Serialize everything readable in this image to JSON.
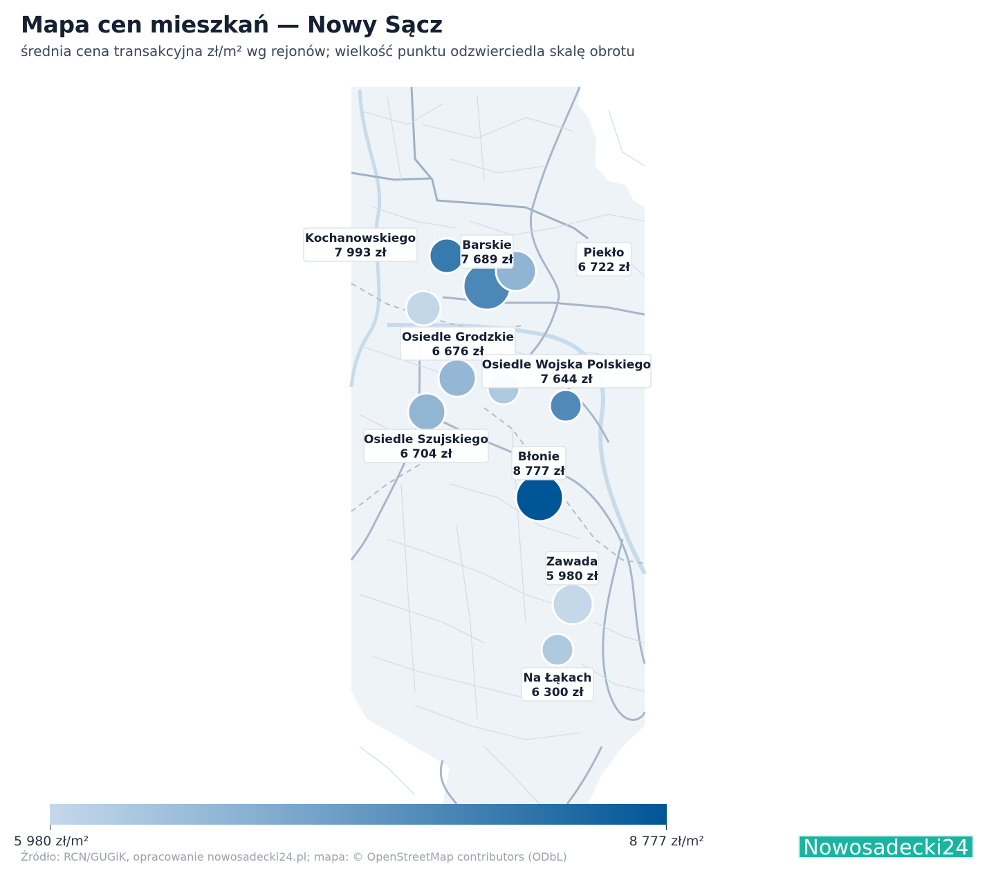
{
  "header": {
    "title": "Mapa cen mieszkań — Nowy Sącz",
    "subtitle": "średnia cena transakcyjna zł/m² wg rejonów; wielkość punktu odzwierciedla skalę obrotu"
  },
  "colors": {
    "low": "#c4d8ea",
    "high": "#005596",
    "map_bg": "#eef3f7",
    "brand": "#19b5a0"
  },
  "chart_data": {
    "type": "bubble-map",
    "value_min": 5980,
    "value_max": 8777,
    "districts": [
      {
        "name": "Kochanowskiego",
        "value_label": "7 993 zł",
        "value": 7993
      },
      {
        "name": "Barskie",
        "value_label": "7 689 zł",
        "value": 7689
      },
      {
        "name": "Piekło",
        "value_label": "6 722 zł",
        "value": 6722
      },
      {
        "name": "Osiedle Grodzkie",
        "value_label": "6 676 zł",
        "value": 6676
      },
      {
        "name": "Osiedle Wojska Polskiego",
        "value_label": "7 644 zł",
        "value": 7644
      },
      {
        "name": "Osiedle Szujskiego",
        "value_label": "6 704 zł",
        "value": 6704
      },
      {
        "name": "Błonie",
        "value_label": "8 777 zł",
        "value": 8777
      },
      {
        "name": "Zawada",
        "value_label": "5 980 zł",
        "value": 5980
      },
      {
        "name": "Na Łąkach",
        "value_label": "6 300 zł",
        "value": 6300
      }
    ]
  },
  "colorbar": {
    "min_label": "5 980 zł/m²",
    "max_label": "8 777 zł/m²"
  },
  "footer": {
    "source": "Źródło: RCN/GUGiK, opracowanie nowosadecki24.pl; mapa: © OpenStreetMap contributors (ODbL)",
    "brand": "Nowosadecki24"
  }
}
